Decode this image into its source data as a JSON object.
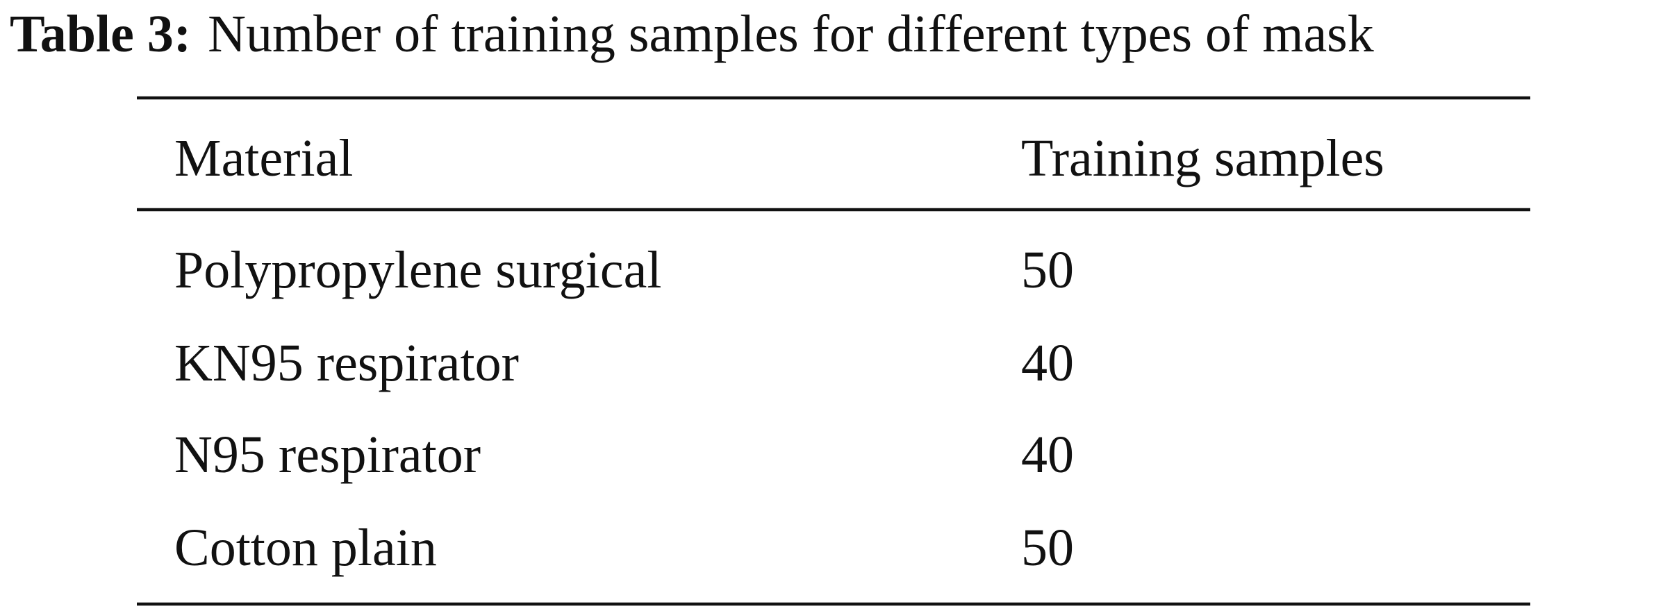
{
  "caption": {
    "label": "Table 3:",
    "text": "Number of training samples for different types of mask"
  },
  "table": {
    "header": [
      "Material",
      "Training samples"
    ],
    "rows": [
      [
        "Polypropylene surgical",
        50
      ],
      [
        "KN95 respirator",
        40
      ],
      [
        "N95 respirator",
        40
      ],
      [
        "Cotton plain",
        50
      ]
    ]
  }
}
